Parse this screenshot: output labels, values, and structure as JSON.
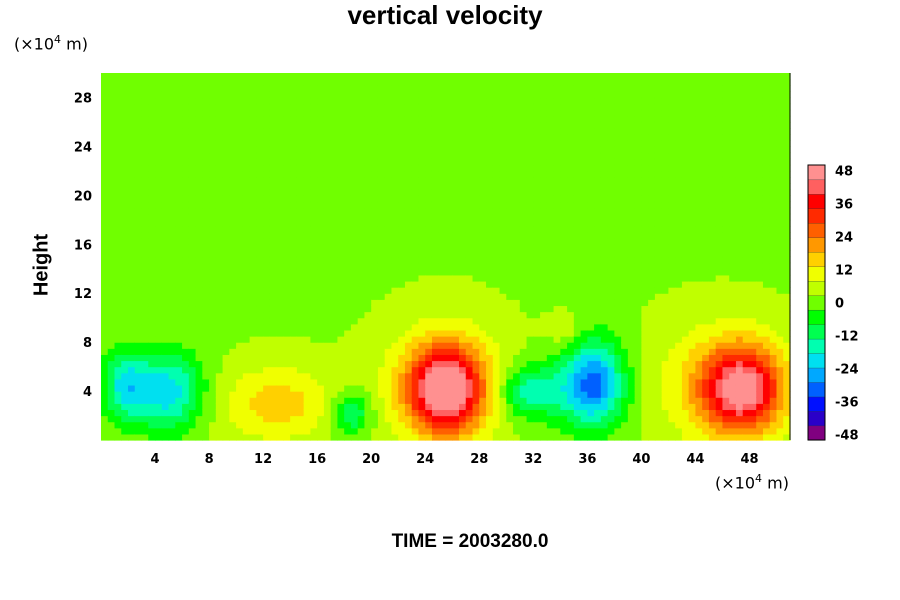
{
  "chart_data": {
    "type": "heatmap",
    "title": "vertical velocity",
    "ylabel": "Height",
    "xunit": {
      "prefix": "(×10",
      "exp": "4",
      "suffix": " m)"
    },
    "yunit": {
      "prefix": "(×10",
      "exp": "4",
      "suffix": " m)"
    },
    "xlim": [
      0,
      51
    ],
    "ylim": [
      0,
      30
    ],
    "xticks": [
      4,
      8,
      12,
      16,
      20,
      24,
      28,
      32,
      36,
      40,
      44,
      48
    ],
    "yticks": [
      4,
      8,
      12,
      16,
      20,
      24,
      28
    ],
    "colorbar": {
      "ticks": [
        48,
        36,
        24,
        12,
        0,
        -12,
        -24,
        -36,
        -48
      ],
      "range": [
        -50,
        50
      ],
      "colors": [
        "#800080",
        "#2a00c8",
        "#0010ff",
        "#0060ff",
        "#00a8ff",
        "#00e0f0",
        "#00ffb0",
        "#00ff50",
        "#00ff00",
        "#70ff00",
        "#c0ff00",
        "#f0ff00",
        "#ffd000",
        "#ff9800",
        "#ff6000",
        "#ff2a00",
        "#ff0000",
        "#ff6060",
        "#ff9090"
      ]
    },
    "features": [
      {
        "x": 25.5,
        "y": 4.2,
        "sx": 1.9,
        "sy": 2.4,
        "value": 42
      },
      {
        "x": 47.5,
        "y": 4.2,
        "sx": 2.0,
        "sy": 2.4,
        "value": 38
      },
      {
        "x": 46.0,
        "y": 4.5,
        "sx": 3.5,
        "sy": 3.5,
        "value": 14
      },
      {
        "x": 25.5,
        "y": 4.5,
        "sx": 3.2,
        "sy": 3.6,
        "value": 14
      },
      {
        "x": 13.0,
        "y": 3.0,
        "sx": 3.0,
        "sy": 2.2,
        "value": 14
      },
      {
        "x": 5.0,
        "y": 4.0,
        "sx": 1.8,
        "sy": 2.2,
        "value": -24
      },
      {
        "x": 1.8,
        "y": 4.5,
        "sx": 1.2,
        "sy": 2.0,
        "value": -20
      },
      {
        "x": 18.5,
        "y": 2.2,
        "sx": 1.0,
        "sy": 1.2,
        "value": -18
      },
      {
        "x": 31.5,
        "y": 4.0,
        "sx": 1.5,
        "sy": 1.5,
        "value": -16
      },
      {
        "x": 36.5,
        "y": 5.0,
        "sx": 1.5,
        "sy": 2.5,
        "value": -24
      },
      {
        "x": 35.5,
        "y": 4.0,
        "sx": 2.5,
        "sy": 2.0,
        "value": -12
      },
      {
        "x": 34.5,
        "y": 9.0,
        "sx": 1.0,
        "sy": 1.0,
        "value": 6
      }
    ],
    "background": 2
  },
  "time_label": "TIME = 2003280.0"
}
